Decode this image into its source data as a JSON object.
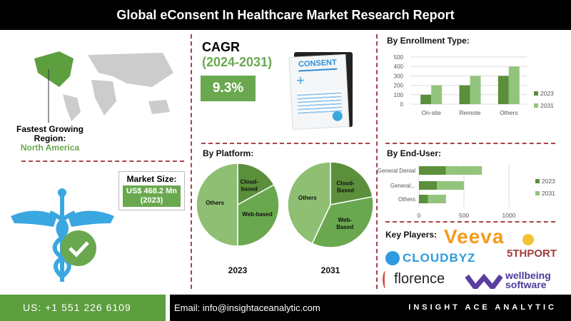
{
  "title": "Global eConsent In Healthcare Market Research Report",
  "region": {
    "label_line1": "Fastest Growing",
    "label_line2": "Region",
    "colon": ":",
    "value": "North America"
  },
  "market_size": {
    "label": "Market Size:",
    "value": "US$ 468.2 Mn",
    "year": "(2023)"
  },
  "cagr": {
    "label": "CAGR",
    "years": "(2024-2031)",
    "value": "9.3%"
  },
  "consent_doc": {
    "heading": "CONSENT"
  },
  "key_players": {
    "label": "Key Players:",
    "logos": [
      "Veeva",
      "5THPORT",
      "CLOUDBYZ",
      "florence",
      "wellbeing software"
    ]
  },
  "footer": {
    "phone": "US: +1 551 226 6109",
    "email": "Email: info@insightaceanalytic.com",
    "brand": "INSIGHT ACE ANALYTIC"
  },
  "colors": {
    "dark_green": "#5b8f3b",
    "green": "#6aa84f",
    "light_green": "#93c47d",
    "divider": "#a8434c"
  },
  "chart_data": [
    {
      "type": "bar",
      "title": "By Enrollment Type:",
      "categories": [
        "On-site",
        "Remote",
        "Others"
      ],
      "series": [
        {
          "name": "2023",
          "values": [
            100,
            200,
            300
          ]
        },
        {
          "name": "2031",
          "values": [
            200,
            300,
            400
          ]
        }
      ],
      "ylim": [
        0,
        500
      ],
      "yticks": [
        0,
        100,
        200,
        300,
        400,
        500
      ],
      "grid": true,
      "legend": "right"
    },
    {
      "type": "bar",
      "orientation": "horizontal",
      "stacked": true,
      "title": "By End-User:",
      "categories": [
        "General Denial",
        "General...",
        "Others"
      ],
      "series": [
        {
          "name": "2023",
          "values": [
            300,
            200,
            100
          ]
        },
        {
          "name": "2031",
          "values": [
            400,
            300,
            200
          ]
        }
      ],
      "xlim": [
        0,
        1000
      ],
      "xticks": [
        0,
        500,
        1000
      ],
      "grid": true,
      "legend": "right"
    },
    {
      "type": "pie",
      "title": "By Platform:",
      "caption": "2023",
      "labels": [
        "Cloud-based",
        "Web-based",
        "Others"
      ],
      "values": [
        17,
        33,
        50
      ]
    },
    {
      "type": "pie",
      "caption": "2031",
      "labels": [
        "Cloud-Based",
        "Web-Based",
        "Others"
      ],
      "values": [
        22,
        35,
        43
      ]
    }
  ]
}
